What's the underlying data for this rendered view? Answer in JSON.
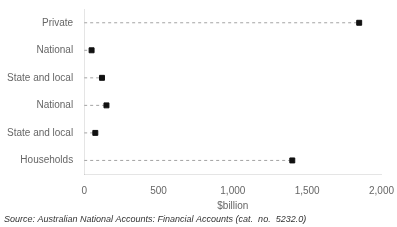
{
  "chart_data": {
    "type": "dot",
    "orientation": "horizontal",
    "categories": [
      "Private",
      "National",
      "State and local",
      "National",
      "State and local",
      "Households"
    ],
    "values": [
      1850,
      50,
      120,
      150,
      75,
      1400
    ],
    "xlabel": "$billion",
    "xlim": [
      0,
      2000
    ],
    "xticks": [
      0,
      500,
      1000,
      1500,
      2000
    ],
    "annotation": "Source: Australian National Accounts: Financial Accounts (cat.  no.  5232.0)",
    "color": "#111111",
    "marker": "square",
    "line_style": "dashed",
    "grid": false
  }
}
